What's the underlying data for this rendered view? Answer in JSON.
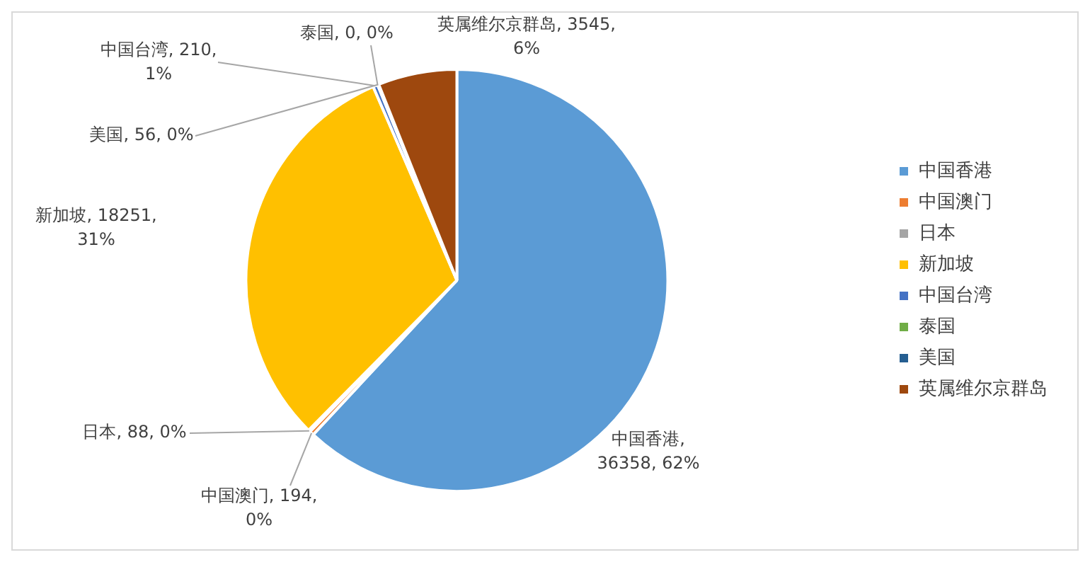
{
  "chart_data": {
    "type": "pie",
    "categories": [
      "中国香港",
      "中国澳门",
      "日本",
      "新加坡",
      "中国台湾",
      "泰国",
      "美国",
      "英属维尔京群岛"
    ],
    "values": [
      36358,
      194,
      88,
      18251,
      210,
      0,
      56,
      3545
    ],
    "colors": [
      "#5b9bd5",
      "#ed7d31",
      "#a5a5a5",
      "#ffc000",
      "#4472c4",
      "#70ad47",
      "#255e91",
      "#9e480e"
    ],
    "value_labels": [
      "中国香港, 36358, 62%",
      "中国澳门, 194, 0%",
      "日本, 88, 0%",
      "新加坡, 18251, 31%",
      "中国台湾, 210, 1%",
      "泰国, 0, 0%",
      "美国, 56, 0%",
      "英属维尔京群岛, 3545, 6%"
    ],
    "legend": "right"
  }
}
